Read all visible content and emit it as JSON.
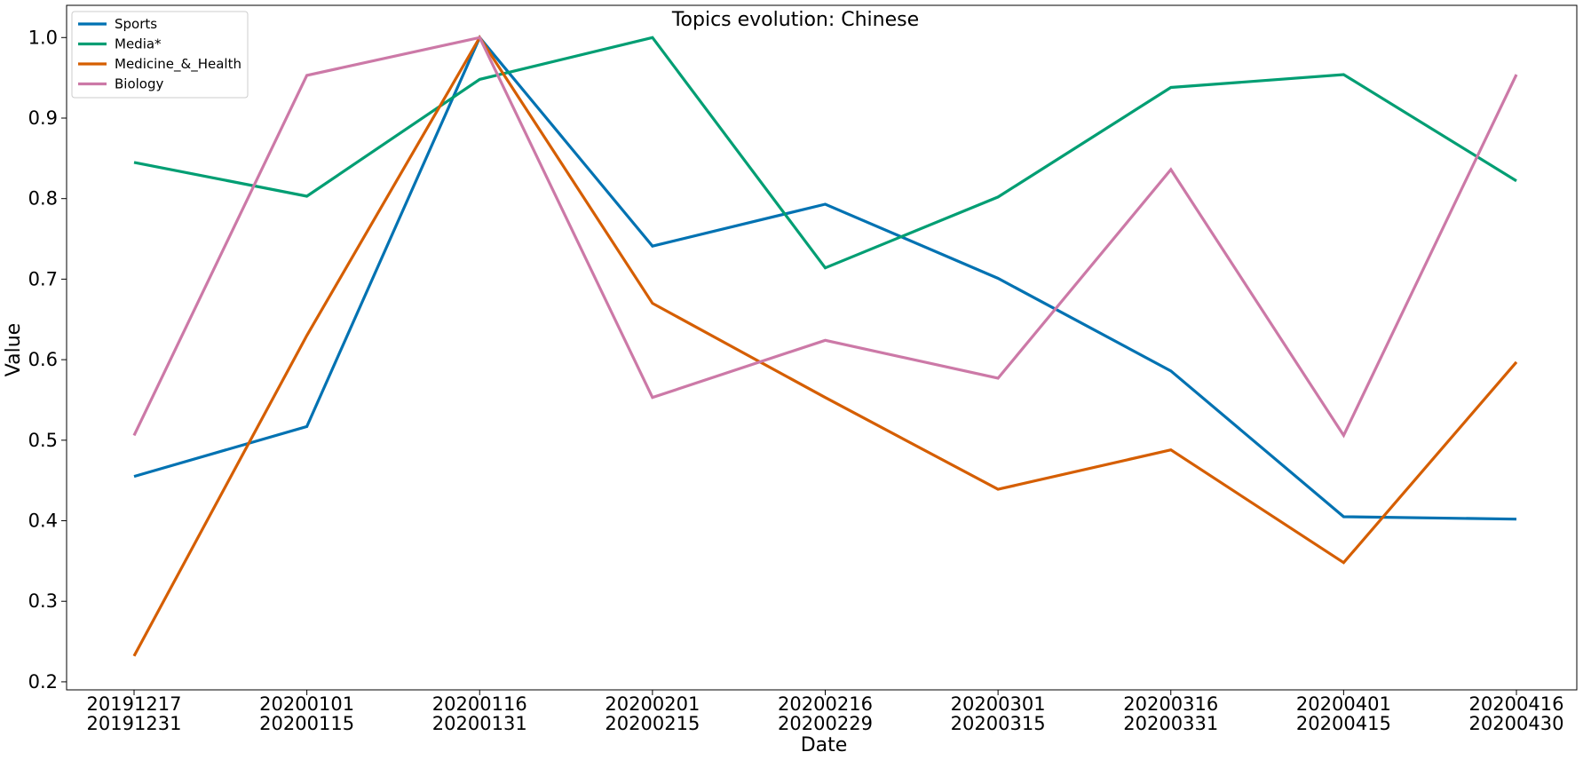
{
  "chart_data": {
    "type": "line",
    "title": "Topics evolution: Chinese",
    "xlabel": "Date",
    "ylabel": "Value",
    "categories": [
      [
        "20191217",
        "20191231"
      ],
      [
        "20200101",
        "20200115"
      ],
      [
        "20200116",
        "20200131"
      ],
      [
        "20200201",
        "20200215"
      ],
      [
        "20200216",
        "20200229"
      ],
      [
        "20200301",
        "20200315"
      ],
      [
        "20200316",
        "20200331"
      ],
      [
        "20200401",
        "20200415"
      ],
      [
        "20200416",
        "20200430"
      ]
    ],
    "ylim": [
      0.19,
      1.04
    ],
    "yticks": [
      "0.2",
      "0.3",
      "0.4",
      "0.5",
      "0.6",
      "0.7",
      "0.8",
      "0.9",
      "1.0"
    ],
    "grid": false,
    "legend_position": "top-left",
    "series": [
      {
        "name": "Sports",
        "color": "#0072b2",
        "values": [
          0.455,
          0.517,
          1.0,
          0.741,
          0.793,
          0.701,
          0.586,
          0.405,
          0.402
        ]
      },
      {
        "name": "Media*",
        "color": "#009e73",
        "values": [
          0.845,
          0.803,
          0.948,
          1.0,
          0.714,
          0.802,
          0.938,
          0.954,
          0.822
        ]
      },
      {
        "name": "Medicine_&_Health",
        "color": "#d55e00",
        "values": [
          0.232,
          0.63,
          1.0,
          0.67,
          0.553,
          0.439,
          0.488,
          0.348,
          0.597
        ]
      },
      {
        "name": "Biology",
        "color": "#cc79a7",
        "values": [
          0.506,
          0.953,
          1.0,
          0.553,
          0.624,
          0.577,
          0.836,
          0.506,
          0.954
        ]
      }
    ]
  }
}
